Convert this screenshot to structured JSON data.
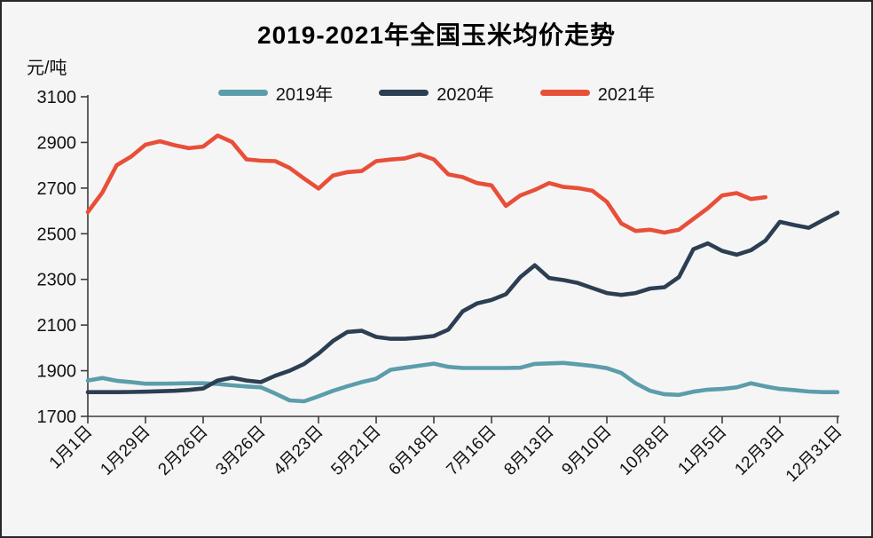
{
  "chart_data": {
    "type": "line",
    "title": "2019-2021年全国玉米均价走势",
    "unit_label": "元/吨",
    "xlabel": "",
    "ylabel": "元/吨",
    "ylim": [
      1700,
      3100
    ],
    "y_ticks": [
      1700,
      1900,
      2100,
      2300,
      2500,
      2700,
      2900,
      3100
    ],
    "grid": false,
    "legend_position": "top-center",
    "x_unit": "weekly points starting 1月1日",
    "x_tick_labels": [
      "1月1日",
      "1月29日",
      "2月26日",
      "3月26日",
      "4月23日",
      "5月21日",
      "6月18日",
      "7月16日",
      "8月13日",
      "9月10日",
      "10月8日",
      "11月5日",
      "12月3日",
      "12月31日"
    ],
    "x_tick_every_n_points": 4,
    "colors": {
      "series_2019": "#5C9DAB",
      "series_2020": "#2C3E52",
      "series_2021": "#E84F38",
      "axis": "#3d3d3d",
      "text": "#111111",
      "background": "#f6f5f6",
      "border": "#28282c"
    },
    "series": [
      {
        "name": "2019年",
        "color": "#5C9DAB",
        "values": [
          1857,
          1868,
          1856,
          1850,
          1843,
          1843,
          1844,
          1845,
          1845,
          1842,
          1836,
          1831,
          1827,
          1800,
          1770,
          1766,
          1788,
          1812,
          1832,
          1850,
          1865,
          1904,
          1913,
          1922,
          1931,
          1917,
          1912,
          1912,
          1912,
          1912,
          1913,
          1930,
          1932,
          1934,
          1928,
          1921,
          1911,
          1890,
          1845,
          1812,
          1797,
          1794,
          1808,
          1817,
          1820,
          1827,
          1845,
          1831,
          1820,
          1815,
          1809,
          1806,
          1806
        ]
      },
      {
        "name": "2020年",
        "color": "#2C3E52",
        "values": [
          1806,
          1806,
          1806,
          1807,
          1808,
          1810,
          1812,
          1816,
          1822,
          1857,
          1869,
          1857,
          1850,
          1878,
          1900,
          1930,
          1975,
          2030,
          2070,
          2075,
          2048,
          2040,
          2040,
          2045,
          2052,
          2080,
          2160,
          2195,
          2210,
          2235,
          2310,
          2362,
          2306,
          2297,
          2284,
          2262,
          2240,
          2232,
          2240,
          2260,
          2266,
          2310,
          2432,
          2458,
          2425,
          2408,
          2428,
          2470,
          2552,
          2538,
          2526,
          2560,
          2592
        ]
      },
      {
        "name": "2021年",
        "color": "#E84F38",
        "values": [
          2595,
          2680,
          2800,
          2838,
          2890,
          2905,
          2888,
          2875,
          2882,
          2930,
          2902,
          2826,
          2820,
          2818,
          2788,
          2742,
          2698,
          2755,
          2770,
          2775,
          2818,
          2825,
          2830,
          2848,
          2826,
          2760,
          2748,
          2722,
          2712,
          2622,
          2668,
          2692,
          2722,
          2705,
          2700,
          2688,
          2640,
          2545,
          2512,
          2518,
          2505,
          2518,
          2565,
          2612,
          2668,
          2678,
          2652,
          2660
        ]
      }
    ]
  }
}
